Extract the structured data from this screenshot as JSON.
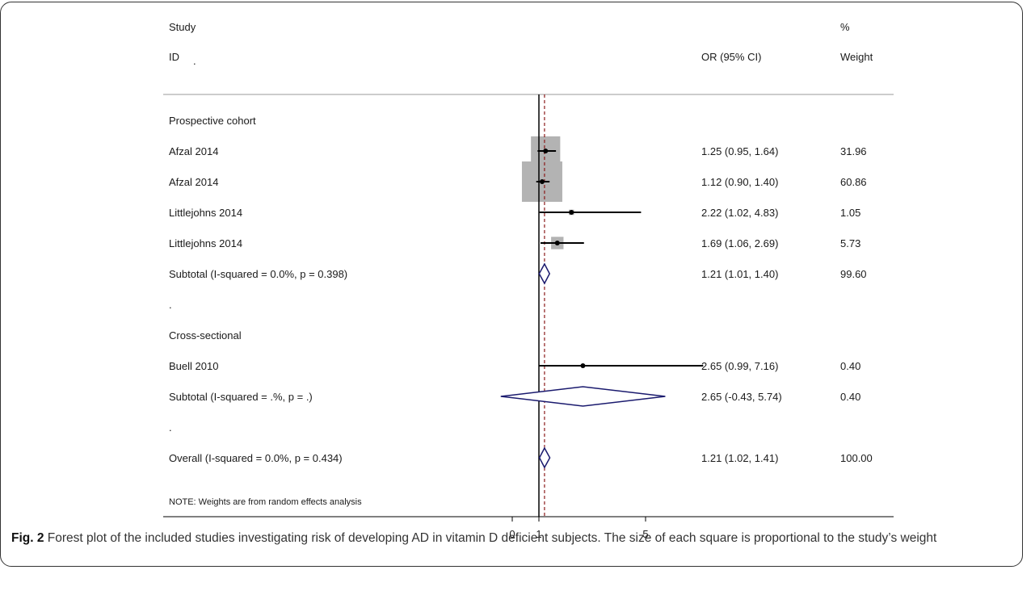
{
  "header": {
    "study_line1": "Study",
    "study_line2": "ID",
    "or_label": "OR (95% CI)",
    "weight_line1": "%",
    "weight_line2": "Weight",
    "id_dot": "."
  },
  "note": "NOTE: Weights are from random effects analysis",
  "caption": {
    "label": "Fig. 2",
    "text": "Forest plot of the included studies investigating risk of developing AD in vitamin D deficient subjects. The size of each square is proportional to the study’s weight"
  },
  "chart_data": {
    "type": "forest",
    "xlim": [
      0,
      7.16
    ],
    "ticks": [
      0,
      1,
      5
    ],
    "reference_line": 1,
    "overall_line": 1.21,
    "colors": {
      "box": "#b3b3b3",
      "diamond": "#1a1a6e",
      "dashed": "#8b1a1a",
      "line": "#000000"
    },
    "rows": [
      {
        "kind": "group",
        "label": "Prospective cohort"
      },
      {
        "kind": "study",
        "label": "Afzal 2014",
        "or": 1.25,
        "lo": 0.95,
        "hi": 1.64,
        "weight": 31.96,
        "or_text": "1.25 (0.95, 1.64)",
        "weight_text": "31.96"
      },
      {
        "kind": "study",
        "label": "Afzal 2014",
        "or": 1.12,
        "lo": 0.9,
        "hi": 1.4,
        "weight": 60.86,
        "or_text": "1.12 (0.90, 1.40)",
        "weight_text": "60.86"
      },
      {
        "kind": "study",
        "label": "Littlejohns 2014",
        "or": 2.22,
        "lo": 1.02,
        "hi": 4.83,
        "weight": 1.05,
        "or_text": "2.22 (1.02, 4.83)",
        "weight_text": "1.05"
      },
      {
        "kind": "study",
        "label": "Littlejohns 2014",
        "or": 1.69,
        "lo": 1.06,
        "hi": 2.69,
        "weight": 5.73,
        "or_text": "1.69 (1.06, 2.69)",
        "weight_text": "5.73"
      },
      {
        "kind": "subtotal",
        "label": "Subtotal  (I-squared = 0.0%, p = 0.398)",
        "or": 1.21,
        "lo": 1.01,
        "hi": 1.4,
        "or_text": "1.21 (1.01, 1.40)",
        "weight_text": "99.60"
      },
      {
        "kind": "spacer",
        "label": "."
      },
      {
        "kind": "group",
        "label": "Cross-sectional"
      },
      {
        "kind": "study",
        "label": "Buell 2010",
        "or": 2.65,
        "lo": 0.99,
        "hi": 7.16,
        "weight": 0.4,
        "or_text": "2.65 (0.99, 7.16)",
        "weight_text": "0.40"
      },
      {
        "kind": "subtotal",
        "label": "Subtotal  (I-squared = .%, p = .)",
        "or": 2.65,
        "lo": -0.43,
        "hi": 5.74,
        "or_text": "2.65 (-0.43, 5.74)",
        "weight_text": "0.40"
      },
      {
        "kind": "spacer",
        "label": "."
      },
      {
        "kind": "overall",
        "label": "Overall  (I-squared = 0.0%, p = 0.434)",
        "or": 1.21,
        "lo": 1.02,
        "hi": 1.41,
        "or_text": "1.21 (1.02, 1.41)",
        "weight_text": "100.00"
      }
    ]
  }
}
